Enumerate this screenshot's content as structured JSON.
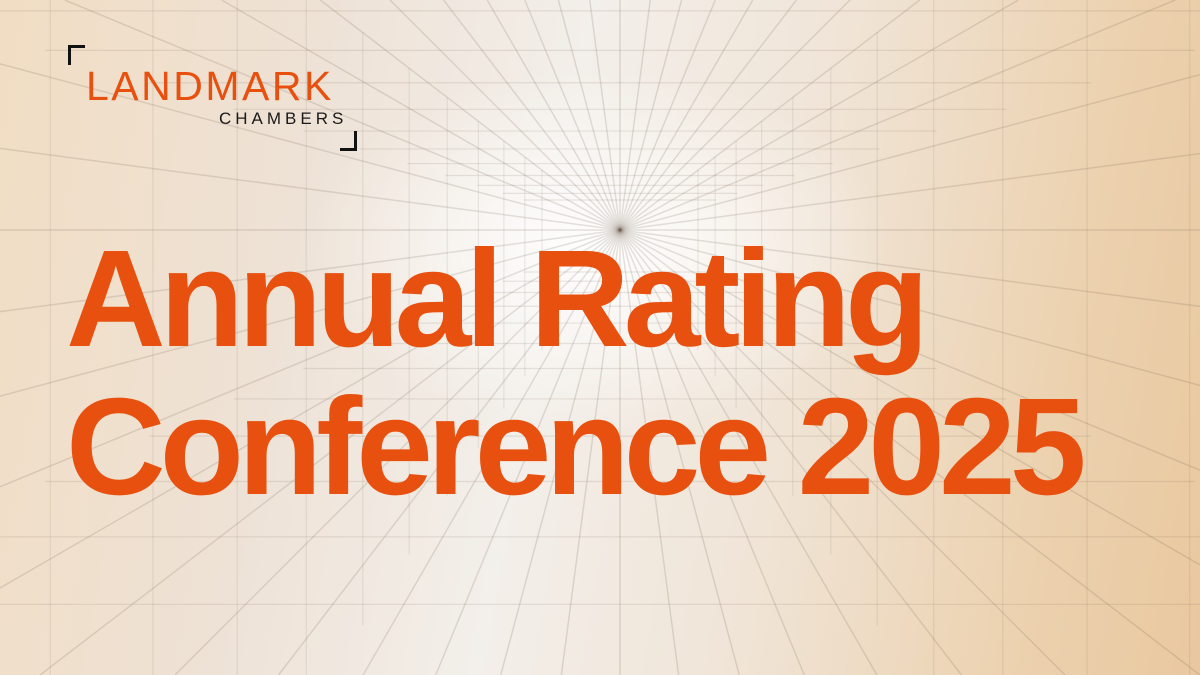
{
  "logo": {
    "name": "LANDMARK",
    "subname": "CHAMBERS"
  },
  "title": {
    "line1": "Annual Rating",
    "line2": "Conference 2025"
  },
  "colors": {
    "accent": "#e8500f",
    "text_dark": "#1a1a1a"
  }
}
